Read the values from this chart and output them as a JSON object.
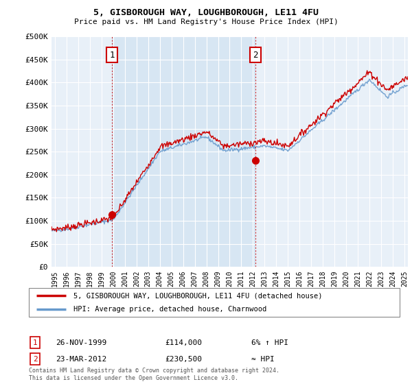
{
  "title_line1": "5, GISBOROUGH WAY, LOUGHBOROUGH, LE11 4FU",
  "title_line2": "Price paid vs. HM Land Registry's House Price Index (HPI)",
  "ylim": [
    0,
    500000
  ],
  "yticks": [
    0,
    50000,
    100000,
    150000,
    200000,
    250000,
    300000,
    350000,
    400000,
    450000,
    500000
  ],
  "ytick_labels": [
    "£0",
    "£50K",
    "£100K",
    "£150K",
    "£200K",
    "£250K",
    "£300K",
    "£350K",
    "£400K",
    "£450K",
    "£500K"
  ],
  "xlim_start": 1994.7,
  "xlim_end": 2025.3,
  "xtick_years": [
    1995,
    1996,
    1997,
    1998,
    1999,
    2000,
    2001,
    2002,
    2003,
    2004,
    2005,
    2006,
    2007,
    2008,
    2009,
    2010,
    2011,
    2012,
    2013,
    2014,
    2015,
    2016,
    2017,
    2018,
    2019,
    2020,
    2021,
    2022,
    2023,
    2024,
    2025
  ],
  "hpi_color": "#6699cc",
  "price_color": "#cc0000",
  "shade_color": "#ddeeff",
  "transaction1_year": 1999.9,
  "transaction1_price": 114000,
  "transaction1_label": "1",
  "transaction2_year": 2012.22,
  "transaction2_price": 230500,
  "transaction2_label": "2",
  "legend_line1": "5, GISBOROUGH WAY, LOUGHBOROUGH, LE11 4FU (detached house)",
  "legend_line2": "HPI: Average price, detached house, Charnwood",
  "table_row1_num": "1",
  "table_row1_date": "26-NOV-1999",
  "table_row1_price": "£114,000",
  "table_row1_hpi": "6% ↑ HPI",
  "table_row2_num": "2",
  "table_row2_date": "23-MAR-2012",
  "table_row2_price": "£230,500",
  "table_row2_hpi": "≈ HPI",
  "footer": "Contains HM Land Registry data © Crown copyright and database right 2024.\nThis data is licensed under the Open Government Licence v3.0.",
  "background_color": "#ffffff",
  "plot_bg_color": "#e8f0f8",
  "grid_color": "#ffffff"
}
